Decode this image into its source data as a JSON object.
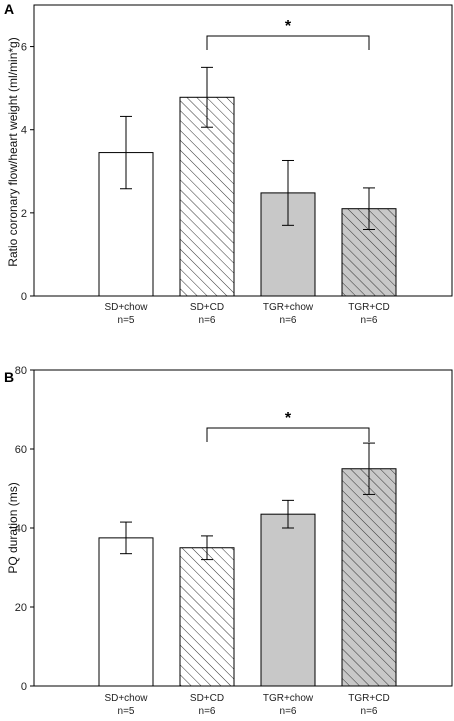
{
  "chart_data": [
    {
      "panel": "A",
      "type": "bar",
      "categories": [
        "SD+chow",
        "SD+CD",
        "TGR+chow",
        "TGR+CD"
      ],
      "group_sizes": [
        "n=5",
        "n=6",
        "n=6",
        "n=6"
      ],
      "values": [
        3.45,
        4.78,
        2.48,
        2.1
      ],
      "errors": [
        0.87,
        0.72,
        0.78,
        0.5
      ],
      "fills": [
        "white",
        "hatch",
        "#c8c8c8",
        "hatch-gray"
      ],
      "ylabel": "Ratio coronary flow/heart weight (ml/min*g)",
      "ylim": [
        0,
        7
      ],
      "yticks": [
        0,
        2,
        4,
        6
      ],
      "significance": {
        "from": 1,
        "to": 3,
        "label": "*"
      }
    },
    {
      "panel": "B",
      "type": "bar",
      "categories": [
        "SD+chow",
        "SD+CD",
        "TGR+chow",
        "TGR+CD"
      ],
      "group_sizes": [
        "n=5",
        "n=6",
        "n=6",
        "n=6"
      ],
      "values": [
        37.5,
        35,
        43.5,
        55
      ],
      "errors": [
        4,
        3,
        3.5,
        6.5
      ],
      "fills": [
        "white",
        "hatch",
        "#c8c8c8",
        "hatch-gray"
      ],
      "ylabel": "PQ duration (ms)",
      "ylim": [
        0,
        80
      ],
      "yticks": [
        0,
        20,
        40,
        60,
        80
      ],
      "significance": {
        "from": 1,
        "to": 3,
        "label": "*"
      }
    }
  ]
}
